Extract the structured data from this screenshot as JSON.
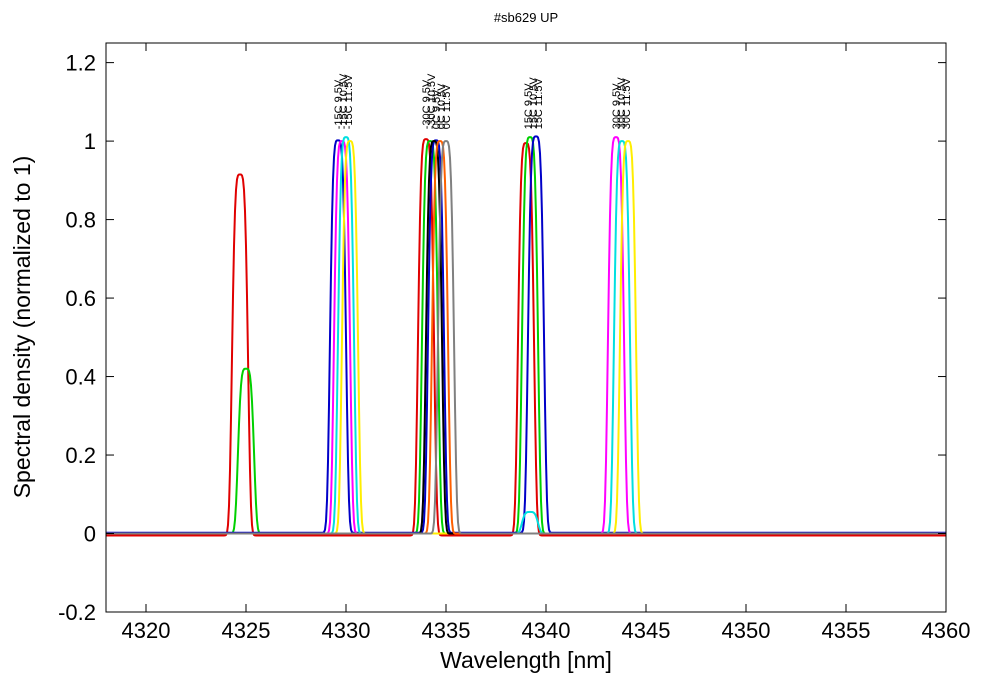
{
  "chart_data": {
    "type": "line",
    "title": "#sb629 UP",
    "xlabel": "Wavelength [nm]",
    "ylabel": "Spectral density (normalized to 1)",
    "xlim": [
      4318,
      4360
    ],
    "ylim": [
      -0.2,
      1.25
    ],
    "xticks": [
      4320,
      4325,
      4330,
      4335,
      4340,
      4345,
      4350,
      4355,
      4360
    ],
    "xtick_labels": [
      "4320",
      "4325",
      "4330",
      "4335",
      "4340",
      "4345",
      "4350",
      "4355",
      "4360"
    ],
    "yticks": [
      -0.2,
      0,
      0.2,
      0.4,
      0.6,
      0.8,
      1,
      1.2
    ],
    "ytick_labels": [
      "-0.2",
      "0",
      "0.2",
      "0.4",
      "0.6",
      "0.8",
      "1",
      "1.2"
    ],
    "grid": false,
    "series": [
      {
        "color": "#e00000",
        "width": 0.4,
        "baseline": -0.005,
        "peaks": [
          [
            4324.7,
            0.92
          ],
          [
            4334.0,
            1.01
          ],
          [
            4339.0,
            1.0
          ]
        ]
      },
      {
        "color": "#00d000",
        "width": 0.4,
        "baseline": 0.0,
        "peaks": [
          [
            4325.0,
            0.42
          ],
          [
            4334.2,
            1.0
          ],
          [
            4339.2,
            1.01
          ]
        ]
      },
      {
        "color": "#0000c8",
        "width": 0.4,
        "baseline": 0.002,
        "peaks": [
          [
            4329.6,
            1.0
          ],
          [
            4334.5,
            1.0
          ],
          [
            4339.5,
            1.01
          ]
        ]
      },
      {
        "color": "#ff00ff",
        "width": 0.4,
        "baseline": 0.0,
        "peaks": [
          [
            4329.8,
            1.0
          ],
          [
            4343.5,
            1.01
          ]
        ]
      },
      {
        "color": "#00e0e0",
        "width": 0.4,
        "baseline": 0.0,
        "peaks": [
          [
            4330.0,
            1.01
          ],
          [
            4339.2,
            0.055
          ],
          [
            4343.8,
            1.0
          ]
        ]
      },
      {
        "color": "#ffee00",
        "width": 0.4,
        "baseline": 0.0,
        "peaks": [
          [
            4330.2,
            1.0
          ],
          [
            4344.1,
            1.0
          ]
        ]
      },
      {
        "color": "#000000",
        "width": 0.4,
        "baseline": 0.0,
        "peaks": [
          [
            4334.4,
            1.0
          ]
        ]
      },
      {
        "color": "#ff6000",
        "width": 0.4,
        "baseline": 0.0,
        "peaks": [
          [
            4334.7,
            1.0
          ]
        ]
      },
      {
        "color": "#808080",
        "width": 0.4,
        "baseline": 0.0,
        "peaks": [
          [
            4335.0,
            1.0
          ]
        ]
      }
    ],
    "annotations": [
      {
        "text": "-15C 9.5V",
        "x": 4329.6
      },
      {
        "text": "-15C 10.5V",
        "x": 4329.85
      },
      {
        "text": "-15C 11.5V",
        "x": 4330.1
      },
      {
        "text": "-30C 9.5V",
        "x": 4334.0
      },
      {
        "text": "-30C 10.5V",
        "x": 4334.25
      },
      {
        "text": "0C 9.5V",
        "x": 4334.5
      },
      {
        "text": "0C 10.5V",
        "x": 4334.75
      },
      {
        "text": "0C 11.5V",
        "x": 4335.0
      },
      {
        "text": "15C 9.5V",
        "x": 4339.1
      },
      {
        "text": "15C 10.5V",
        "x": 4339.35
      },
      {
        "text": "15C 11.5V",
        "x": 4339.6
      },
      {
        "text": "30C 9.5V",
        "x": 4343.5
      },
      {
        "text": "30C 10.5V",
        "x": 4343.75
      },
      {
        "text": "30C 11.5V",
        "x": 4344.0
      }
    ]
  }
}
